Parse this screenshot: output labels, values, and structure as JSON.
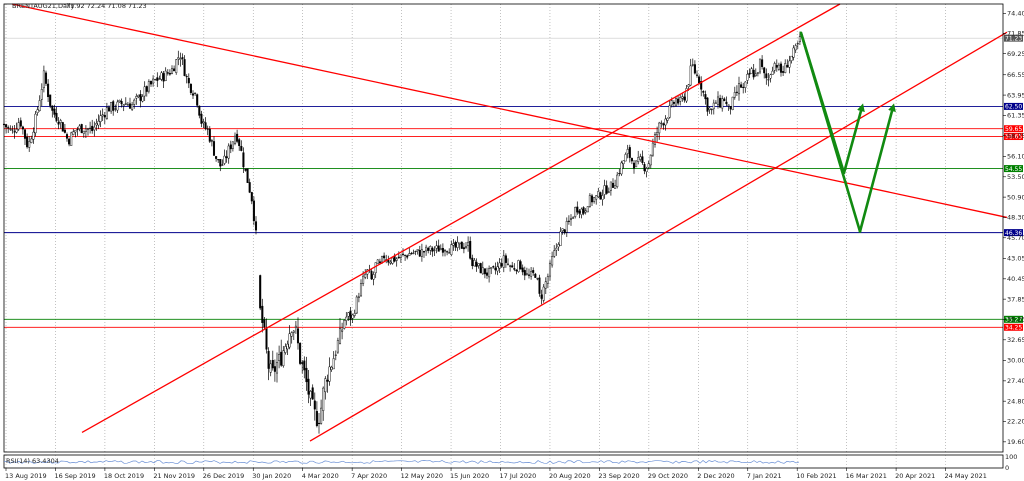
{
  "header": {
    "symbol": "BRENTAUG21,Daily",
    "ohlc": "71.92 72.24 71.08 71.23"
  },
  "indicator": {
    "label": "RSI(14) 63.4304",
    "scale_top": "100",
    "scale_bottom": "0"
  },
  "colors": {
    "candle": "#000000",
    "red_line": "#ff0000",
    "blue_line": "#00008b",
    "green_line": "#008000",
    "arrow": "#118a11",
    "grid": "#9a9a9a",
    "indicator_line": "#6a8fd4"
  },
  "chart_data": {
    "type": "candlestick",
    "x_axis_labels": [
      "13 Aug 2019",
      "16 Sep 2019",
      "18 Oct 2019",
      "21 Nov 2019",
      "26 Dec 2019",
      "30 Jan 2020",
      "4 Mar 2020",
      "7 Apr 2020",
      "12 May 2020",
      "15 Jun 2020",
      "17 Jul 2020",
      "20 Aug 2020",
      "23 Sep 2020",
      "29 Oct 2020",
      "2 Dec 2020",
      "7 Jan 2021",
      "10 Feb 2021",
      "16 Mar 2021",
      "20 Apr 2021",
      "24 May 2021"
    ],
    "y_axis_labels": [
      "74.40",
      "71.85",
      "69.25",
      "66.55",
      "63.95",
      "61.35",
      "58.75",
      "56.10",
      "53.50",
      "50.90",
      "48.30",
      "45.70",
      "43.05",
      "40.45",
      "37.85",
      "35.25",
      "32.65",
      "30.00",
      "27.40",
      "24.80",
      "22.20",
      "19.60"
    ],
    "ylim": [
      18.3,
      75.6
    ],
    "grid": "vertical",
    "levels": [
      {
        "label": "62.50",
        "price": 62.5,
        "color": "blue"
      },
      {
        "label": "59.65",
        "price": 59.65,
        "color": "red"
      },
      {
        "label": "58.65",
        "price": 58.65,
        "color": "red"
      },
      {
        "label": "54.55",
        "price": 54.55,
        "color": "green"
      },
      {
        "label": "46.36",
        "price": 46.36,
        "color": "blue"
      },
      {
        "label": "35.27",
        "price": 35.27,
        "color": "green"
      },
      {
        "label": "34.25",
        "price": 34.25,
        "color": "red"
      }
    ],
    "current_price": {
      "label": "71.23",
      "price": 71.23
    },
    "price_path": [
      [
        0,
        60.2
      ],
      [
        8,
        59.2
      ],
      [
        16,
        60.8
      ],
      [
        24,
        57.3
      ],
      [
        32,
        61.1
      ],
      [
        40,
        66.5
      ],
      [
        48,
        61.9
      ],
      [
        56,
        60.7
      ],
      [
        64,
        58.1
      ],
      [
        72,
        59.6
      ],
      [
        80,
        59.8
      ],
      [
        88,
        59.4
      ],
      [
        96,
        61.0
      ],
      [
        104,
        62.3
      ],
      [
        112,
        62.5
      ],
      [
        120,
        63.0
      ],
      [
        128,
        62.7
      ],
      [
        136,
        63.7
      ],
      [
        144,
        64.9
      ],
      [
        152,
        65.9
      ],
      [
        160,
        66.4
      ],
      [
        168,
        67.2
      ],
      [
        176,
        69.3
      ],
      [
        184,
        65.5
      ],
      [
        192,
        64.0
      ],
      [
        198,
        60.2
      ],
      [
        204,
        59.4
      ],
      [
        208,
        57.6
      ],
      [
        212,
        56.0
      ],
      [
        216,
        54.9
      ],
      [
        220,
        55.3
      ],
      [
        224,
        56.7
      ],
      [
        228,
        57.9
      ],
      [
        232,
        59.2
      ],
      [
        236,
        57.5
      ],
      [
        240,
        54.9
      ],
      [
        244,
        52.8
      ],
      [
        248,
        50.6
      ],
      [
        252,
        46.1
      ],
      [
        256,
        36.6
      ],
      [
        260,
        33.5
      ],
      [
        264,
        29.5
      ],
      [
        268,
        27.9
      ],
      [
        272,
        29.4
      ],
      [
        276,
        30.1
      ],
      [
        280,
        31.6
      ],
      [
        284,
        33.2
      ],
      [
        288,
        34.8
      ],
      [
        292,
        33.5
      ],
      [
        296,
        30.3
      ],
      [
        300,
        28.4
      ],
      [
        304,
        26.2
      ],
      [
        308,
        24.1
      ],
      [
        312,
        22.6
      ],
      [
        316,
        23.0
      ],
      [
        320,
        26.6
      ],
      [
        324,
        28.6
      ],
      [
        328,
        29.8
      ],
      [
        332,
        31.5
      ],
      [
        336,
        32.9
      ],
      [
        340,
        35.2
      ],
      [
        344,
        35.8
      ],
      [
        348,
        35.3
      ],
      [
        352,
        37.3
      ],
      [
        356,
        39.1
      ],
      [
        360,
        40.7
      ],
      [
        364,
        41.5
      ],
      [
        368,
        40.1
      ],
      [
        372,
        42.4
      ],
      [
        376,
        42.1
      ],
      [
        380,
        43.4
      ],
      [
        384,
        42.9
      ],
      [
        392,
        43.0
      ],
      [
        400,
        43.4
      ],
      [
        408,
        43.8
      ],
      [
        416,
        43.8
      ],
      [
        424,
        44.1
      ],
      [
        432,
        44.2
      ],
      [
        440,
        44.5
      ],
      [
        448,
        44.3
      ],
      [
        456,
        44.6
      ],
      [
        464,
        44.8
      ],
      [
        468,
        42.6
      ],
      [
        476,
        41.7
      ],
      [
        484,
        41.1
      ],
      [
        492,
        41.6
      ],
      [
        500,
        42.9
      ],
      [
        508,
        41.8
      ],
      [
        516,
        42.3
      ],
      [
        524,
        40.6
      ],
      [
        532,
        41.2
      ],
      [
        536,
        37.8
      ],
      [
        540,
        39.3
      ],
      [
        544,
        40.8
      ],
      [
        548,
        42.9
      ],
      [
        552,
        44.3
      ],
      [
        556,
        46.1
      ],
      [
        560,
        46.7
      ],
      [
        564,
        47.4
      ],
      [
        568,
        48.3
      ],
      [
        572,
        49.6
      ],
      [
        576,
        49.4
      ],
      [
        580,
        49.0
      ],
      [
        584,
        50.4
      ],
      [
        588,
        50.6
      ],
      [
        592,
        50.8
      ],
      [
        596,
        51.2
      ],
      [
        600,
        51.7
      ],
      [
        604,
        52.1
      ],
      [
        608,
        52.3
      ],
      [
        612,
        53.2
      ],
      [
        616,
        54.6
      ],
      [
        620,
        55.7
      ],
      [
        624,
        56.6
      ],
      [
        628,
        55.6
      ],
      [
        632,
        55.0
      ],
      [
        636,
        55.5
      ],
      [
        640,
        54.8
      ],
      [
        644,
        54.9
      ],
      [
        648,
        57.2
      ],
      [
        652,
        58.9
      ],
      [
        656,
        60.2
      ],
      [
        660,
        60.8
      ],
      [
        664,
        61.6
      ],
      [
        668,
        62.6
      ],
      [
        672,
        63.4
      ],
      [
        676,
        62.9
      ],
      [
        680,
        63.7
      ],
      [
        684,
        65.4
      ],
      [
        688,
        67.8
      ],
      [
        692,
        66.6
      ],
      [
        696,
        65.8
      ],
      [
        700,
        63.9
      ],
      [
        704,
        62.3
      ],
      [
        708,
        61.9
      ],
      [
        712,
        63.1
      ],
      [
        716,
        62.9
      ],
      [
        720,
        63.6
      ],
      [
        724,
        62.0
      ],
      [
        728,
        62.8
      ],
      [
        732,
        64.0
      ],
      [
        736,
        65.3
      ],
      [
        740,
        64.5
      ],
      [
        744,
        66.3
      ],
      [
        748,
        67.0
      ],
      [
        752,
        66.4
      ],
      [
        756,
        68.1
      ],
      [
        760,
        66.4
      ],
      [
        764,
        65.8
      ],
      [
        768,
        67.6
      ],
      [
        772,
        68.2
      ],
      [
        776,
        66.8
      ],
      [
        780,
        67.1
      ],
      [
        784,
        68.3
      ],
      [
        788,
        68.9
      ],
      [
        792,
        69.8
      ],
      [
        797,
        71.2
      ]
    ],
    "drawn_lines": [
      {
        "color": "red",
        "from": [
          8,
          75.6
        ],
        "to": [
          1003,
          48.3
        ]
      },
      {
        "color": "red",
        "from": [
          78,
          20.8
        ],
        "to": [
          836,
          75.6
        ]
      },
      {
        "color": "red",
        "from": [
          306,
          19.7
        ],
        "to": [
          1003,
          72.0
        ]
      }
    ],
    "projection_arrows": [
      {
        "from": [
          797,
          71.9
        ],
        "to": [
          840,
          54.0
        ]
      },
      {
        "from": [
          840,
          54.0
        ],
        "to": [
          858,
          62.4
        ]
      },
      {
        "from": [
          797,
          71.9
        ],
        "to": [
          856,
          46.5
        ]
      },
      {
        "from": [
          856,
          46.5
        ],
        "to": [
          889,
          62.4
        ]
      }
    ]
  }
}
